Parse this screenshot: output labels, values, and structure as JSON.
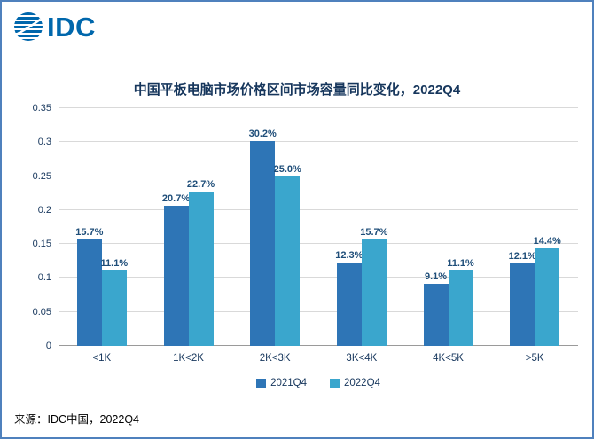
{
  "logo": {
    "text": "IDC",
    "color": "#0067ac"
  },
  "title": "中国平板电脑市场价格区间市场容量同比变化，2022Q4",
  "source": "来源：IDC中国，2022Q4",
  "chart_data": {
    "type": "bar",
    "title": "中国平板电脑市场价格区间市场容量同比变化，2022Q4",
    "categories": [
      "<1K",
      "1K<2K",
      "2K<3K",
      "3K<4K",
      "4K<5K",
      ">5K"
    ],
    "series": [
      {
        "name": "2021Q4",
        "color": "#2e75b6",
        "values": [
          0.157,
          0.207,
          0.302,
          0.123,
          0.091,
          0.121
        ]
      },
      {
        "name": "2022Q4",
        "color": "#3aa6cd",
        "values": [
          0.111,
          0.227,
          0.25,
          0.157,
          0.111,
          0.144
        ]
      }
    ],
    "labels": [
      [
        "15.7%",
        "20.7%",
        "30.2%",
        "12.3%",
        "9.1%",
        "12.1%"
      ],
      [
        "11.1%",
        "22.7%",
        "25.0%",
        "15.7%",
        "11.1%",
        "14.4%"
      ]
    ],
    "xlabel": "",
    "ylabel": "",
    "ylim": [
      0,
      0.35
    ],
    "ytick_step": 0.05,
    "yticks": [
      "0",
      "0.05",
      "0.1",
      "0.15",
      "0.2",
      "0.25",
      "0.3",
      "0.35"
    ],
    "grid": true,
    "legend_position": "bottom"
  }
}
